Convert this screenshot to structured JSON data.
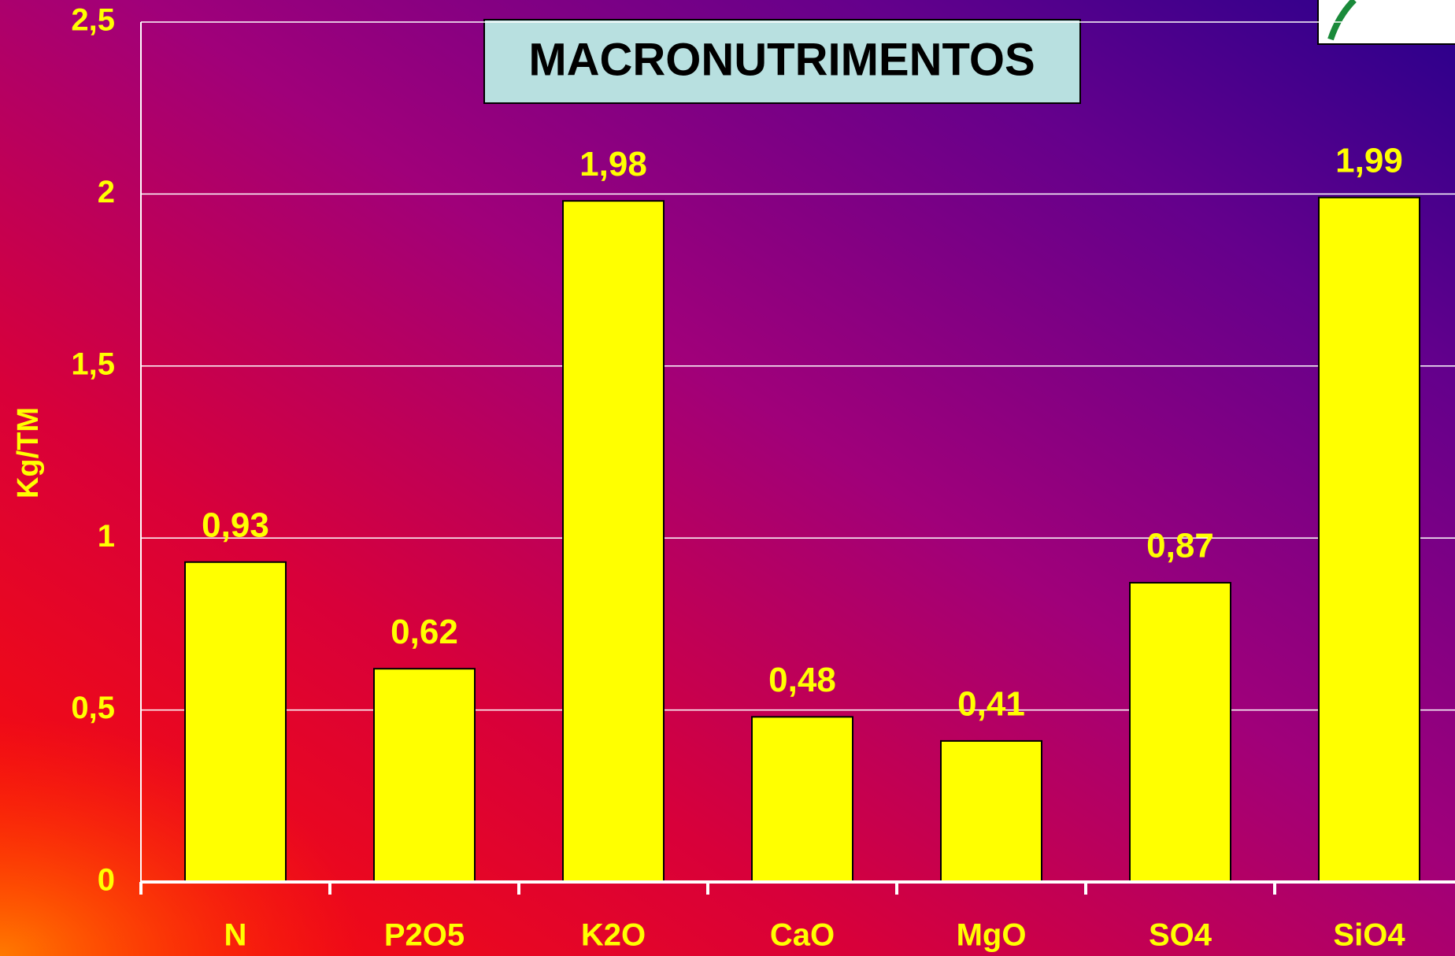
{
  "chart_data": {
    "type": "bar",
    "title": "MACRONUTRIMENTOS",
    "y_label": "Kg/TM",
    "categories": [
      "N",
      "P2O5",
      "K2O",
      "CaO",
      "MgO",
      "SO4",
      "SiO4"
    ],
    "values": [
      0.93,
      0.62,
      1.98,
      0.48,
      0.41,
      0.87,
      1.99
    ],
    "value_labels": [
      "0,93",
      "0,62",
      "1,98",
      "0,48",
      "0,41",
      "0,87",
      "1,99"
    ],
    "color": "#ffff00",
    "ylim": [
      0,
      2.5
    ],
    "yticks": [
      0,
      {
        "value": 0.5,
        "label": "0,5"
      },
      1,
      {
        "value": 1.5,
        "label": "1,5"
      },
      2,
      {
        "value": 2.5,
        "label": "2,5"
      }
    ],
    "grid": true
  }
}
